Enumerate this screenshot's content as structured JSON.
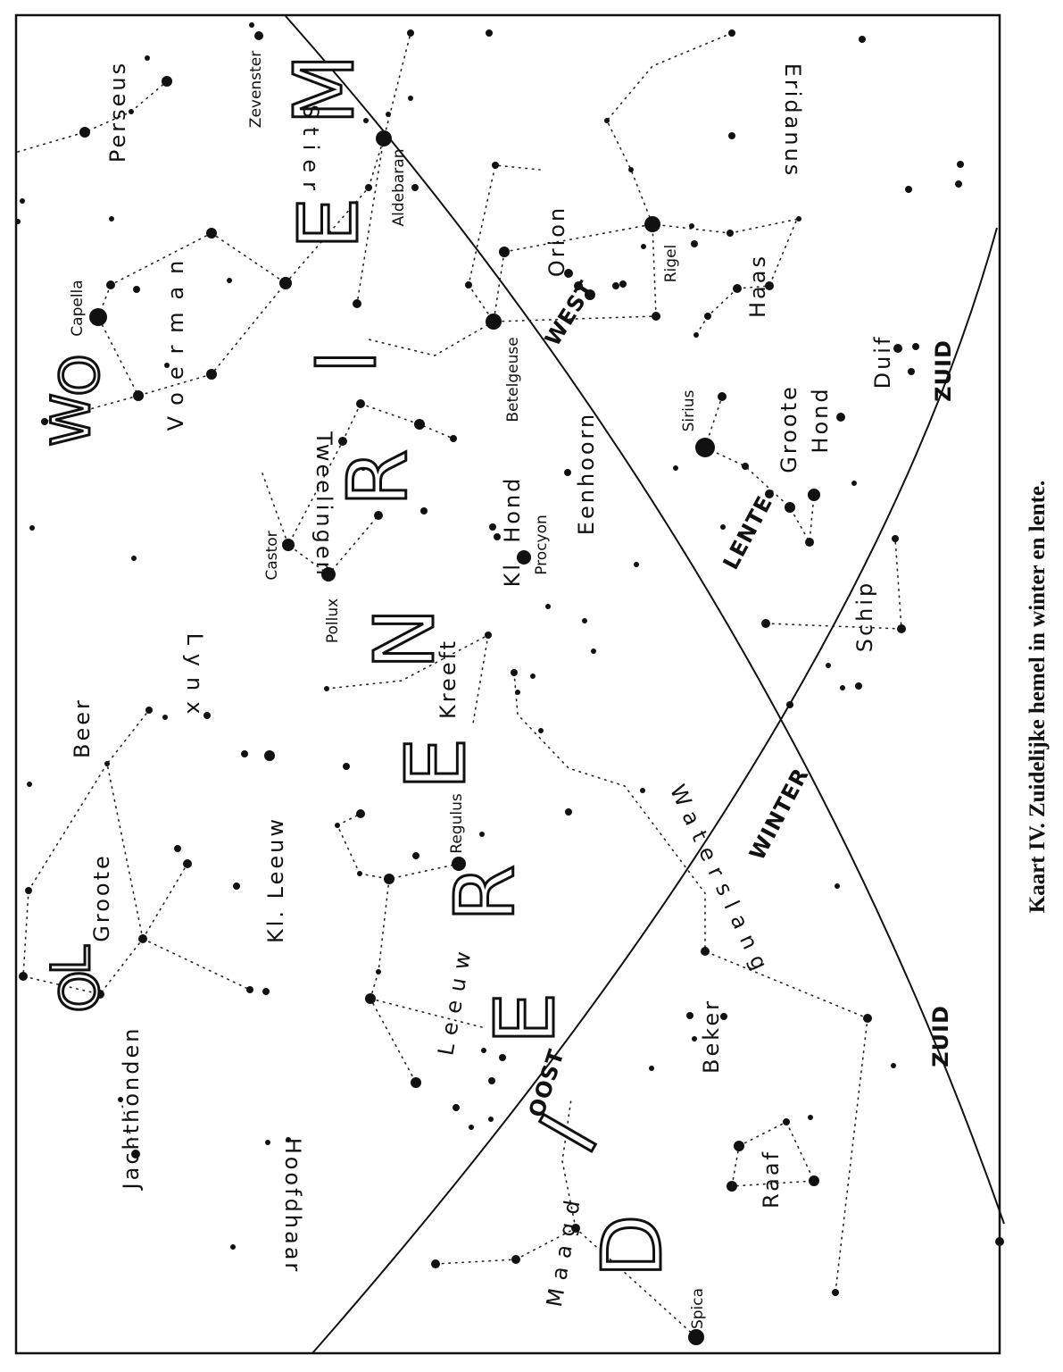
{
  "caption": "Kaart IV. Zuidelijke hemel in winter en lente.",
  "colors": {
    "ink": "#111111",
    "paper": "#ffffff"
  },
  "map_type": "star chart",
  "labels": {
    "perseus": "Perseus",
    "zevenster": "Zevenster",
    "capella": "Capella",
    "voerman": "Voerman",
    "aldebaran": "Aldebaran",
    "stier": "Stier",
    "eridanus": "Eridanus",
    "orion": "Orion",
    "rigel": "Rigel",
    "betelgeuse": "Betelgeuse",
    "haas": "Haas",
    "duif": "Duif",
    "sirius": "Sirius",
    "groote_hond_1": "Groote",
    "groote_hond_2": "Hond",
    "tweelingen": "Tweelingen",
    "eenhoorn": "Eenhoorn",
    "kl_hond": "Kl. Hond",
    "procyon": "Procyon",
    "castor": "Castor",
    "pollux": "Pollux",
    "schip": "Schip",
    "lynx": "Lynx",
    "kreeft": "Kreeft",
    "beer": "Beer",
    "waterslang": "Waterslang",
    "kl_leeuw": "Kl. Leeuw",
    "regulus": "Regulus",
    "groote_beer": "Groote",
    "leeuw": "Leeuw",
    "beker": "Beker",
    "jachthonden": "Jachthonden",
    "hoofdhaar": "Hoofdhaar",
    "raaf": "Raaf",
    "maagd": "Maagd",
    "spica": "Spica"
  },
  "directions": {
    "west": "WEST",
    "lente": "LENTE",
    "winter": "WINTER",
    "oost": "OOST",
    "zuid_1": "ZUID",
    "zuid_2": "ZUID"
  },
  "big_letters": {
    "m": "M",
    "e1": "E",
    "i1": "I",
    "r1": "R",
    "n": "N",
    "e2": "E",
    "r2": "R",
    "e3": "E",
    "i2": "I",
    "d": "D",
    "w": "W",
    "o1": "O",
    "o2": "O",
    "l": "L"
  }
}
